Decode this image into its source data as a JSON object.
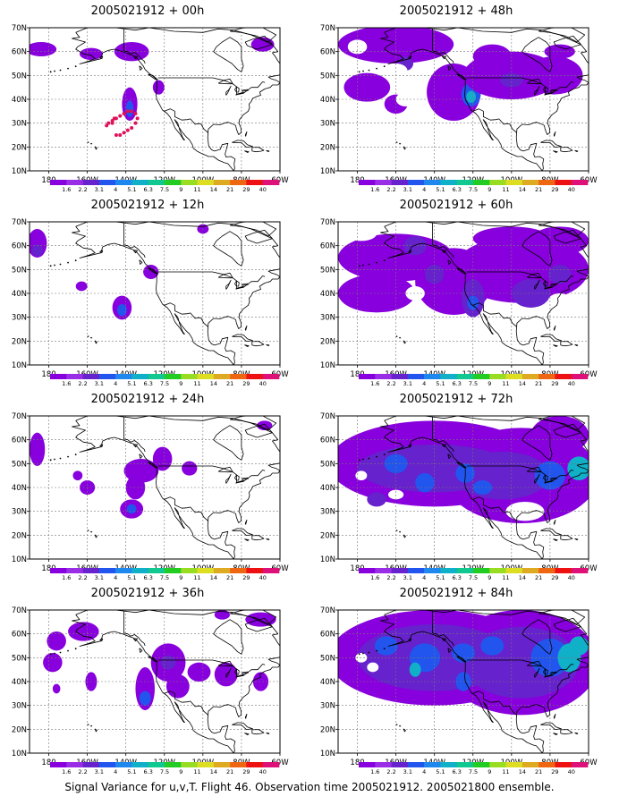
{
  "footer": "Signal Variance for u,v,T. Flight 46. Observation time 2005021912. 2005021800 ensemble.",
  "lat_labels": [
    "70N",
    "60N",
    "50N",
    "40N",
    "30N",
    "20N",
    "10N"
  ],
  "lon_labels": [
    "180",
    "160W",
    "140W",
    "120W",
    "100W",
    "80W",
    "60W"
  ],
  "colorbar": {
    "labels": [
      "1.6",
      "2.2",
      "3.1",
      "4",
      "5.1",
      "6.3",
      "7.5",
      "9",
      "11",
      "14",
      "21",
      "29",
      "40"
    ],
    "colors": [
      "#8800dd",
      "#9a2ee6",
      "#6622cc",
      "#2255ee",
      "#1e88ee",
      "#10b0c8",
      "#10c890",
      "#22cc22",
      "#99dd22",
      "#dddd22",
      "#ddaa22",
      "#ee6611",
      "#ee1111",
      "#dd1177"
    ]
  },
  "panels": [
    {
      "title": "2005021912 + 00h"
    },
    {
      "title": "2005021912 + 12h"
    },
    {
      "title": "2005021912 + 24h"
    },
    {
      "title": "2005021912 + 36h"
    },
    {
      "title": "2005021912 + 48h"
    },
    {
      "title": "2005021912 + 60h"
    },
    {
      "title": "2005021912 + 72h"
    },
    {
      "title": "2005021912 + 84h"
    }
  ],
  "observation_track": [
    [
      -150,
      29
    ],
    [
      -149,
      30
    ],
    [
      -147,
      31
    ],
    [
      -145,
      32
    ],
    [
      -143,
      33
    ],
    [
      -141,
      34
    ],
    [
      -139,
      35
    ],
    [
      -137,
      35
    ],
    [
      -135,
      34
    ],
    [
      -134,
      32
    ],
    [
      -135,
      30
    ],
    [
      -137,
      28
    ],
    [
      -139,
      27
    ],
    [
      -141,
      26
    ],
    [
      -143,
      25
    ],
    [
      -145,
      25
    ],
    [
      -147,
      30
    ],
    [
      -146,
      32
    ]
  ]
}
